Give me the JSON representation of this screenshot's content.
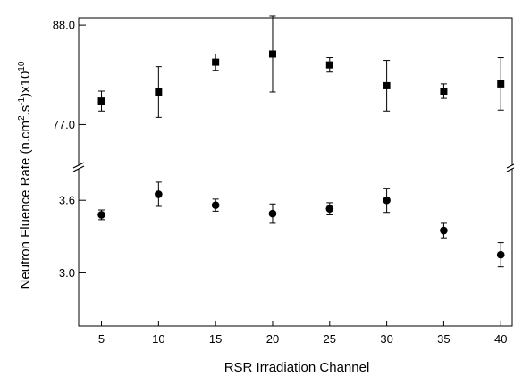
{
  "chart_data": {
    "type": "scatter",
    "title": "",
    "xlabel": "RSR Irradiation Channel",
    "ylabel": {
      "main": "Neutron Fluence Rate (n.cm",
      "sup1": "2",
      "mid1": ".s",
      "sup2": "-1",
      "mid2": ")x10",
      "sup3": "10"
    },
    "x": [
      5,
      10,
      15,
      20,
      25,
      30,
      35,
      40
    ],
    "x_ticks": [
      "5",
      "10",
      "15",
      "20",
      "25",
      "30",
      "35",
      "40"
    ],
    "xlim": [
      3,
      41
    ],
    "broken_y_axis": true,
    "panels": [
      {
        "name": "upper",
        "ylim": [
          72.5,
          88.8
        ],
        "y_ticks": [
          "88.0",
          "77.0"
        ],
        "tick_values": [
          88.0,
          77.0
        ],
        "marker": "square",
        "series": [
          {
            "values": [
              79.6,
              80.6,
              83.9,
              84.8,
              83.6,
              81.3,
              80.7,
              81.5
            ],
            "errors": [
              1.1,
              2.8,
              0.9,
              4.2,
              0.8,
              2.8,
              0.8,
              2.9
            ]
          }
        ]
      },
      {
        "name": "lower",
        "ylim": [
          2.56,
          3.86
        ],
        "y_ticks": [
          "3.6",
          "3.0"
        ],
        "tick_values": [
          3.6,
          3.0
        ],
        "marker": "circle",
        "series": [
          {
            "values": [
              3.48,
              3.65,
              3.56,
              3.49,
              3.53,
              3.6,
              3.35,
              3.15
            ],
            "errors": [
              0.04,
              0.1,
              0.05,
              0.08,
              0.05,
              0.1,
              0.06,
              0.1
            ]
          }
        ]
      }
    ],
    "grid": false,
    "legend": "none"
  }
}
